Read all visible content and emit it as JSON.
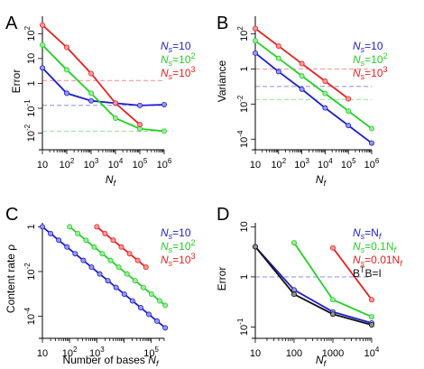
{
  "chart_data": [
    {
      "panel": "A",
      "type": "line",
      "ylabel": "Error",
      "xlabel": "N_f",
      "xlog": true,
      "ylog": true,
      "xlim": [
        10,
        1000000
      ],
      "ylim": [
        0.003,
        500
      ],
      "x_ticks": [
        {
          "v": 10,
          "b": "10",
          "e": ""
        },
        {
          "v": 100,
          "b": "10",
          "e": "2"
        },
        {
          "v": 1000,
          "b": "10",
          "e": "3"
        },
        {
          "v": 10000,
          "b": "10",
          "e": "4"
        },
        {
          "v": 100000,
          "b": "10",
          "e": "5"
        },
        {
          "v": 1000000,
          "b": "10",
          "e": "6"
        }
      ],
      "y_ticks": [
        {
          "v": 0.01,
          "b": "10",
          "e": "-2"
        },
        {
          "v": 0.1,
          "b": "10",
          "e": "-1"
        },
        {
          "v": 1,
          "b": "1",
          "e": ""
        },
        {
          "v": 10,
          "b": "10",
          "e": ""
        },
        {
          "v": 100,
          "b": "10",
          "e": "2"
        }
      ],
      "legend_position": "top-right",
      "series": [
        {
          "name": "Ns=10",
          "legend": {
            "pre": "N",
            "sub": "s",
            "post": "=10",
            "sup": ""
          },
          "color": "#1c1cd0",
          "hline": 0.13,
          "x": [
            10,
            100,
            1000,
            10000,
            100000,
            1000000
          ],
          "y": [
            4.2,
            0.4,
            0.2,
            0.16,
            0.13,
            0.14
          ]
        },
        {
          "name": "Ns=10^2",
          "legend": {
            "pre": "N",
            "sub": "s",
            "post": "=10",
            "sup": "2"
          },
          "color": "#22d022",
          "hline": 0.012,
          "x": [
            10,
            100,
            1000,
            10000,
            100000,
            1000000
          ],
          "y": [
            35,
            3.5,
            0.4,
            0.04,
            0.015,
            0.012
          ]
        },
        {
          "name": "Ns=10^3",
          "legend": {
            "pre": "N",
            "sub": "s",
            "post": "=10",
            "sup": "3"
          },
          "color": "#e82020",
          "hline": 1.3,
          "x": [
            10,
            100,
            1000,
            10000,
            100000
          ],
          "y": [
            220,
            28,
            2.5,
            0.16,
            0.022
          ]
        }
      ]
    },
    {
      "panel": "B",
      "type": "line",
      "ylabel": "Variance",
      "xlabel": "N_f",
      "xlog": true,
      "ylog": true,
      "xlim": [
        10,
        1000000
      ],
      "ylim": [
        4e-05,
        1000
      ],
      "x_ticks": [
        {
          "v": 10,
          "b": "10",
          "e": ""
        },
        {
          "v": 100,
          "b": "10",
          "e": "2"
        },
        {
          "v": 1000,
          "b": "10",
          "e": "3"
        },
        {
          "v": 10000,
          "b": "10",
          "e": "4"
        },
        {
          "v": 100000,
          "b": "10",
          "e": "5"
        },
        {
          "v": 1000000,
          "b": "10",
          "e": "6"
        }
      ],
      "y_ticks": [
        {
          "v": 0.0001,
          "b": "10",
          "e": "-4"
        },
        {
          "v": 0.01,
          "b": "10",
          "e": "-2"
        },
        {
          "v": 1,
          "b": "1",
          "e": ""
        },
        {
          "v": 100,
          "b": "10",
          "e": "2"
        }
      ],
      "legend_position": "top-right",
      "series": [
        {
          "name": "Ns=10",
          "legend": {
            "pre": "N",
            "sub": "s",
            "post": "=10",
            "sup": ""
          },
          "color": "#1c1cd0",
          "hline": 0.1,
          "x": [
            10,
            100,
            1000,
            10000,
            100000,
            1000000
          ],
          "y": [
            8,
            0.7,
            0.07,
            0.006,
            0.0006,
            6e-05
          ]
        },
        {
          "name": "Ns=10^2",
          "legend": {
            "pre": "N",
            "sub": "s",
            "post": "=10",
            "sup": "2"
          },
          "color": "#22d022",
          "hline": 0.018,
          "x": [
            10,
            100,
            1000,
            10000,
            100000,
            1000000
          ],
          "y": [
            40,
            4,
            0.4,
            0.04,
            0.004,
            0.0004
          ]
        },
        {
          "name": "Ns=10^3",
          "legend": {
            "pre": "N",
            "sub": "s",
            "post": "=10",
            "sup": "3"
          },
          "color": "#e82020",
          "hline": 1.0,
          "x": [
            10,
            100,
            1000,
            10000,
            100000
          ],
          "y": [
            200,
            20,
            2,
            0.2,
            0.02
          ]
        }
      ]
    },
    {
      "panel": "C",
      "type": "line",
      "ylabel": "Content rate  ρ",
      "xlabel": "Number of bases  N_f",
      "xlog": true,
      "ylog": true,
      "xlim": [
        10,
        300000
      ],
      "ylim": [
        1.5e-05,
        1.5
      ],
      "x_ticks": [
        {
          "v": 10,
          "b": "10",
          "e": ""
        },
        {
          "v": 100,
          "b": "10",
          "e": "2"
        },
        {
          "v": 1000,
          "b": "10",
          "e": "3"
        },
        {
          "v": 100000,
          "b": "10",
          "e": "5"
        }
      ],
      "y_ticks": [
        {
          "v": 0.0001,
          "b": "10",
          "e": "-4"
        },
        {
          "v": 0.01,
          "b": "10",
          "e": "-2"
        },
        {
          "v": 1,
          "b": "1",
          "e": ""
        }
      ],
      "legend_position": "top-right",
      "series": [
        {
          "name": "Ns=10",
          "legend": {
            "pre": "N",
            "sub": "s",
            "post": "=10",
            "sup": ""
          },
          "color": "#1c1cd0",
          "hline": null,
          "x": [
            10,
            20,
            40,
            80,
            160,
            320,
            640,
            1280,
            2560,
            5120,
            10240,
            20480,
            40960,
            81920,
            163840,
            327680
          ],
          "y": [
            1.0,
            0.5,
            0.25,
            0.125,
            0.0625,
            0.0313,
            0.0156,
            0.0078,
            0.0039,
            0.00195,
            0.00098,
            0.00049,
            0.000244,
            0.000122,
            6.1e-05,
            3.05e-05
          ]
        },
        {
          "name": "Ns=10^2",
          "legend": {
            "pre": "N",
            "sub": "s",
            "post": "=10",
            "sup": "2"
          },
          "color": "#22d022",
          "hline": null,
          "x": [
            100,
            200,
            400,
            800,
            1600,
            3200,
            6400,
            12800,
            25600,
            51200,
            102400,
            204800,
            327680
          ],
          "y": [
            1.0,
            0.5,
            0.25,
            0.125,
            0.0625,
            0.0313,
            0.0156,
            0.0078,
            0.0039,
            0.00195,
            0.00098,
            0.00049,
            0.000305
          ]
        },
        {
          "name": "Ns=10^3",
          "legend": {
            "pre": "N",
            "sub": "s",
            "post": "=10",
            "sup": "3"
          },
          "color": "#e82020",
          "hline": null,
          "x": [
            1000,
            2000,
            4000,
            8000,
            16000,
            32000,
            64000
          ],
          "y": [
            1.0,
            0.5,
            0.25,
            0.125,
            0.0625,
            0.0313,
            0.0156
          ]
        }
      ]
    },
    {
      "panel": "D",
      "type": "line",
      "ylabel": "Error",
      "xlabel": "N_f",
      "xlog": true,
      "ylog": true,
      "xlim": [
        10,
        10000
      ],
      "ylim": [
        0.07,
        12
      ],
      "x_ticks": [
        {
          "v": 10,
          "b": "10",
          "e": ""
        },
        {
          "v": 100,
          "b": "100",
          "e": ""
        },
        {
          "v": 1000,
          "b": "1000",
          "e": ""
        },
        {
          "v": 10000,
          "b": "10",
          "e": "4"
        }
      ],
      "y_ticks": [
        {
          "v": 0.1,
          "b": "10",
          "e": "-1"
        },
        {
          "v": 1,
          "b": "1",
          "e": ""
        },
        {
          "v": 10,
          "b": "10",
          "e": ""
        }
      ],
      "legend_position": "top-right",
      "series": [
        {
          "name": "Ns=Nf",
          "legend": {
            "pre": "N",
            "sub": "s",
            "post": "=N",
            "sub2": "f"
          },
          "color": "#1c1cd0",
          "hline": 1.0,
          "x": [
            10,
            100,
            1000,
            10000
          ],
          "y": [
            4.0,
            0.55,
            0.2,
            0.12
          ]
        },
        {
          "name": "Ns=0.1Nf",
          "legend": {
            "pre": "N",
            "sub": "s",
            "post": "=0.1N",
            "sub2": "f"
          },
          "color": "#22d022",
          "hline": null,
          "x": [
            100,
            1000,
            10000
          ],
          "y": [
            4.8,
            0.35,
            0.16
          ]
        },
        {
          "name": "Ns=0.01Nf",
          "legend": {
            "pre": "N",
            "sub": "s",
            "post": "=0.01N",
            "sub2": "f"
          },
          "color": "#e82020",
          "hline": null,
          "x": [
            1000,
            10000
          ],
          "y": [
            3.8,
            0.35
          ]
        },
        {
          "name": "B^T B=I",
          "legend": {
            "pre": "B",
            "sup": "T",
            "post": "B=I"
          },
          "color": "#111111",
          "hline": null,
          "x": [
            10,
            100,
            1000,
            10000
          ],
          "y": [
            4.0,
            0.45,
            0.18,
            0.11
          ]
        }
      ]
    }
  ]
}
